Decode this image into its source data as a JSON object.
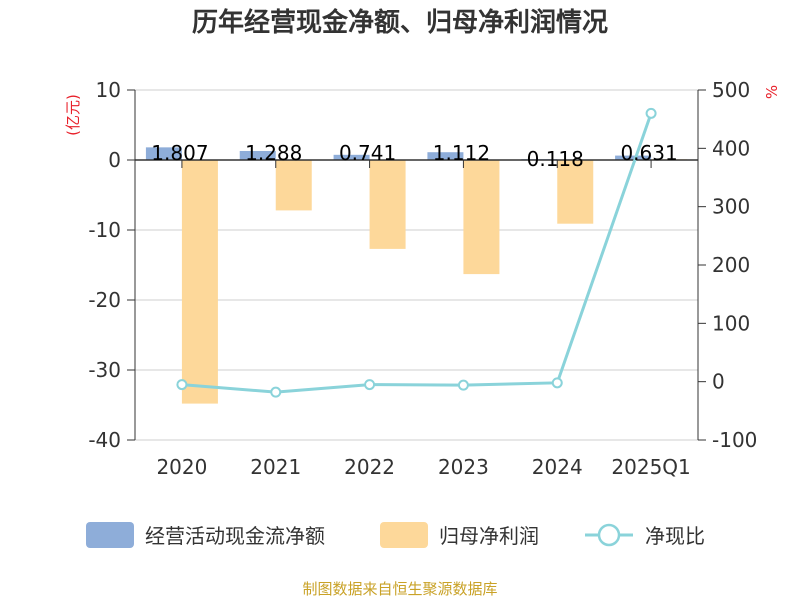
{
  "chart_data": {
    "type": "bar",
    "title": "历年经营现金净额、归母净利润情况",
    "categories": [
      "2020",
      "2021",
      "2022",
      "2023",
      "2024",
      "2025Q1"
    ],
    "left_axis": {
      "unit": "(亿元)",
      "ylim": [
        -40,
        10
      ],
      "ticks": [
        10,
        0,
        -10,
        -20,
        -30,
        -40
      ]
    },
    "right_axis": {
      "unit": "%",
      "ylim": [
        -100,
        500
      ],
      "ticks": [
        500,
        400,
        300,
        200,
        100,
        0,
        -100
      ]
    },
    "series": [
      {
        "name": "经营活动现金流净额",
        "type": "bar",
        "axis": "left",
        "color": "#8eadd9",
        "values": [
          1.807,
          1.288,
          0.741,
          1.112,
          0.118,
          0.631
        ],
        "labels": [
          "1.807",
          "1.288",
          "0.741",
          "1.112",
          "0.118",
          "0.631"
        ]
      },
      {
        "name": "归母净利润",
        "type": "bar",
        "axis": "left",
        "color": "#fdd89a",
        "values": [
          -34.8,
          -7.2,
          -12.7,
          -16.3,
          -9.1,
          0.1
        ]
      },
      {
        "name": "净现比",
        "type": "line",
        "axis": "right",
        "color": "#8ad3da",
        "values": [
          -5,
          -18,
          -5,
          -6,
          -2,
          460
        ]
      }
    ],
    "grid": true,
    "legend_position": "bottom"
  },
  "footer": {
    "source": "制图数据来自恒生聚源数据库"
  }
}
